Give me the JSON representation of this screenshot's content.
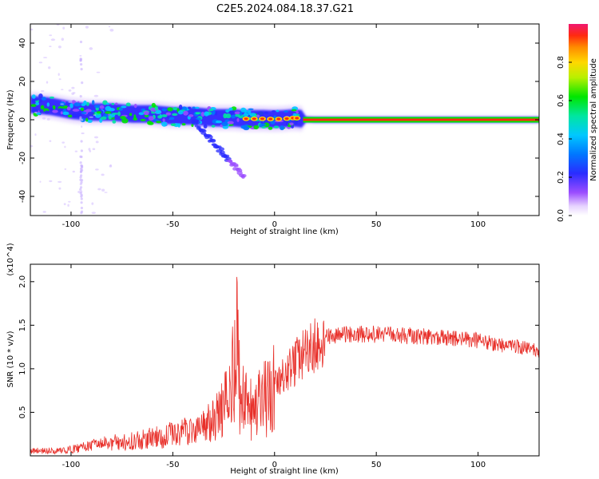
{
  "title": "C2E5.2024.084.18.37.G21",
  "chart_data": [
    {
      "type": "heatmap",
      "name": "spectrogram",
      "xlabel": "Height of straight line (km)",
      "ylabel": "Frequency (Hz)",
      "xlim": [
        -120,
        130
      ],
      "ylim": [
        -50,
        50
      ],
      "x_ticks": [
        -100,
        -50,
        0,
        50,
        100
      ],
      "y_ticks": [
        -40,
        -20,
        0,
        20,
        40
      ],
      "colorbar": {
        "label": "Normalized spectral amplitude",
        "range": [
          0,
          1
        ],
        "ticks": [
          0.0,
          0.2,
          0.4,
          0.6,
          0.8
        ]
      },
      "ridge": {
        "x": [
          -120,
          -110,
          -100,
          -90,
          -80,
          -70,
          -60,
          -50,
          -40,
          -30,
          -20,
          -15,
          -10,
          -5,
          0,
          5,
          10,
          15,
          20,
          30,
          50,
          75,
          100,
          130
        ],
        "y": [
          8,
          7,
          5,
          4,
          4,
          3,
          3,
          2,
          2,
          1,
          1,
          0.5,
          0.5,
          0.5,
          0.3,
          0.5,
          1,
          0.2,
          0,
          0,
          0,
          0,
          0,
          0
        ]
      },
      "grid": false
    },
    {
      "type": "line",
      "name": "snr",
      "xlabel": "Height of straight line (km)",
      "ylabel": "SNR (10 * v/v)",
      "y_multiplier": "(x10^4)",
      "xlim": [
        -120,
        130
      ],
      "ylim": [
        0,
        22000
      ],
      "x_ticks": [
        -100,
        -50,
        0,
        50,
        100
      ],
      "y_ticks": [
        {
          "value": 5000,
          "label": "0.5"
        },
        {
          "value": 10000,
          "label": "1.0"
        },
        {
          "value": 15000,
          "label": "1.5"
        },
        {
          "value": 20000,
          "label": "2.0"
        }
      ],
      "color": "#e8302a",
      "series": [
        {
          "x": [
            -120,
            -110,
            -100,
            -95,
            -90,
            -85,
            -80,
            -75,
            -70,
            -65,
            -60,
            -55,
            -50,
            -45,
            -40,
            -35,
            -30,
            -27,
            -25,
            -23,
            -21,
            -20,
            -19,
            -18,
            -17,
            -16,
            -15,
            -13,
            -11,
            -9,
            -7,
            -5,
            -3,
            0,
            3,
            6,
            10,
            15,
            20,
            25,
            30,
            35,
            40,
            45,
            50,
            55,
            60,
            65,
            70,
            75,
            80,
            85,
            90,
            95,
            100,
            105,
            110,
            115,
            120,
            125,
            130
          ],
          "y": [
            700,
            600,
            800,
            1100,
            1300,
            1500,
            1700,
            1800,
            1900,
            2100,
            2300,
            2500,
            2800,
            3100,
            3400,
            3800,
            4500,
            5500,
            6500,
            7500,
            9000,
            17500,
            20500,
            11000,
            8500,
            7200,
            6500,
            6000,
            5800,
            5900,
            6500,
            7200,
            7800,
            8300,
            9000,
            10000,
            11200,
            12400,
            13300,
            13800,
            14000,
            14100,
            14200,
            14200,
            14150,
            14100,
            14050,
            14000,
            13950,
            13900,
            13800,
            13700,
            13650,
            13550,
            13400,
            13200,
            13000,
            12800,
            12600,
            12400,
            12200
          ]
        }
      ],
      "grid": false
    }
  ]
}
